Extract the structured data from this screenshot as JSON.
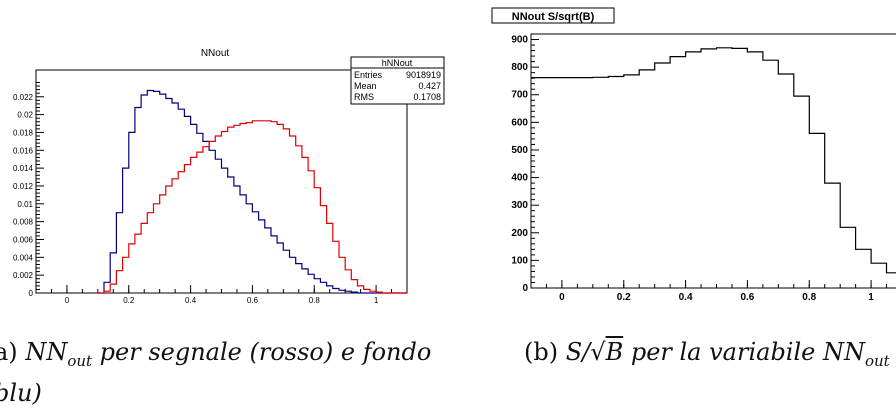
{
  "chart_data": [
    {
      "type": "line",
      "style": "histogram-step",
      "title": "NNout",
      "xlim": [
        -0.1,
        1.1
      ],
      "ylim": [
        0,
        0.025
      ],
      "x_ticks": [
        "0",
        "0.2",
        "0.4",
        "0.6",
        "0.8",
        "1"
      ],
      "y_ticks": [
        "0",
        "0.002",
        "0.004",
        "0.006",
        "0.008",
        "0.01",
        "0.012",
        "0.014",
        "0.016",
        "0.018",
        "0.02",
        "0.022"
      ],
      "x": [
        0.1,
        0.12,
        0.14,
        0.16,
        0.18,
        0.2,
        0.22,
        0.24,
        0.26,
        0.28,
        0.3,
        0.32,
        0.34,
        0.36,
        0.38,
        0.4,
        0.42,
        0.44,
        0.46,
        0.48,
        0.5,
        0.52,
        0.54,
        0.56,
        0.58,
        0.6,
        0.62,
        0.64,
        0.66,
        0.68,
        0.7,
        0.72,
        0.74,
        0.76,
        0.78,
        0.8,
        0.82,
        0.84,
        0.86,
        0.88,
        0.9,
        0.92,
        0.94,
        0.96,
        0.98,
        1.0,
        1.02,
        1.04,
        1.06,
        1.08,
        1.1
      ],
      "series": [
        {
          "color": "#00007f",
          "values": [
            0.0,
            0.0012,
            0.0045,
            0.009,
            0.014,
            0.018,
            0.0208,
            0.0222,
            0.0227,
            0.0226,
            0.0223,
            0.0218,
            0.0213,
            0.0206,
            0.0198,
            0.0189,
            0.0179,
            0.017,
            0.016,
            0.015,
            0.014,
            0.013,
            0.012,
            0.011,
            0.01,
            0.0091,
            0.0082,
            0.0073,
            0.0064,
            0.0056,
            0.0048,
            0.004,
            0.0033,
            0.0027,
            0.0021,
            0.0016,
            0.0012,
            0.0008,
            0.0005,
            0.0003,
            0.0002,
            0.0001,
            0.0,
            0.0,
            0.0,
            0.0,
            0.0,
            0.0,
            0.0,
            0.0,
            0.0
          ]
        },
        {
          "color": "#e00000",
          "values": [
            0.0,
            0.0002,
            0.001,
            0.0025,
            0.004,
            0.0055,
            0.0066,
            0.0078,
            0.009,
            0.01,
            0.011,
            0.012,
            0.0128,
            0.0136,
            0.0144,
            0.0152,
            0.0158,
            0.0164,
            0.017,
            0.0176,
            0.0181,
            0.0186,
            0.0188,
            0.019,
            0.0191,
            0.0193,
            0.0193,
            0.0193,
            0.0192,
            0.0189,
            0.0184,
            0.0176,
            0.0165,
            0.0152,
            0.0137,
            0.0118,
            0.0098,
            0.0078,
            0.0058,
            0.004,
            0.0026,
            0.0015,
            0.0008,
            0.0004,
            0.0002,
            0.0001,
            0.0,
            0.0,
            0.0,
            0.0,
            0.0
          ]
        }
      ],
      "stats_box": {
        "name": "hNNout",
        "rows": [
          {
            "label": "Entries",
            "value": "9018919"
          },
          {
            "label": "Mean",
            "value": "0.427"
          },
          {
            "label": "RMS",
            "value": "0.1708"
          }
        ]
      }
    },
    {
      "type": "line",
      "style": "histogram-step",
      "title": "NNout S/sqrt(B)",
      "xlim": [
        -0.1,
        1.1
      ],
      "ylim": [
        0,
        920
      ],
      "x_ticks": [
        "0",
        "0.2",
        "0.4",
        "0.6",
        "0.8",
        "1"
      ],
      "y_ticks": [
        "0",
        "100",
        "200",
        "300",
        "400",
        "500",
        "600",
        "700",
        "800",
        "900"
      ],
      "x": [
        -0.1,
        -0.05,
        0.0,
        0.05,
        0.1,
        0.15,
        0.2,
        0.25,
        0.3,
        0.35,
        0.4,
        0.45,
        0.5,
        0.55,
        0.6,
        0.65,
        0.7,
        0.75,
        0.8,
        0.85,
        0.9,
        0.95,
        1.0,
        1.05,
        1.1
      ],
      "series": [
        {
          "color": "#000000",
          "values": [
            762,
            762,
            762,
            762,
            763,
            766,
            772,
            790,
            815,
            838,
            855,
            866,
            870,
            868,
            855,
            825,
            775,
            695,
            560,
            380,
            220,
            140,
            90,
            55,
            30
          ]
        }
      ]
    }
  ],
  "captions": {
    "a_prefix": "a)",
    "a_text1": "NN",
    "a_sub1": "out",
    "a_text2": " per segnale (rosso) e fondo",
    "a_line2": "blu)",
    "b_prefix": "(b)",
    "b_s": "S/",
    "b_sqrt": "√",
    "b_b": "B",
    "b_text": " per la variabile NN",
    "b_sub": "out"
  }
}
